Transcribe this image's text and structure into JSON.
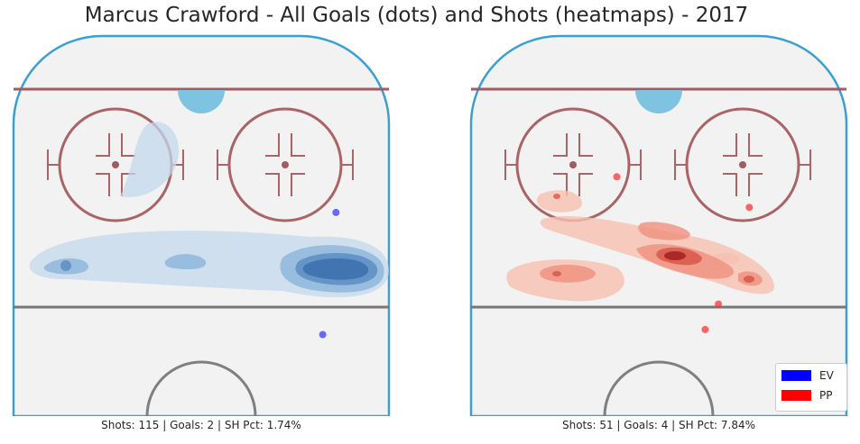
{
  "title": "Marcus Crawford - All Goals (dots) and Shots (heatmaps) - 2017",
  "colors": {
    "ev": "#0000ff",
    "pp": "#ff0000",
    "boards": "#3a9fd1",
    "ice": "#f2f2f2",
    "red_line": "#a05c60",
    "crease": "#7ec3e0"
  },
  "chart_data": [
    {
      "type": "heatmap",
      "panel": "EV",
      "caption": "Shots: 115 | Goals: 2 | SH Pct: 1.74%",
      "shots": 115,
      "goals": 2,
      "sh_pct": "1.74%",
      "heatmap_color": "blue",
      "goal_points": [
        {
          "x": 41,
          "y": 70
        },
        {
          "x": 65,
          "y": 73
        }
      ]
    },
    {
      "type": "heatmap",
      "panel": "PP",
      "caption": "Shots: 51 | Goals: 4 | SH Pct: 7.84%",
      "shots": 51,
      "goals": 4,
      "sh_pct": "7.84%",
      "heatmap_color": "red",
      "goal_points": [
        {
          "x": 72,
          "y": 33
        },
        {
          "x": 66,
          "y": 63
        },
        {
          "x": 47,
          "y": 56
        },
        {
          "x": 42,
          "y": 53
        }
      ]
    }
  ],
  "legend": [
    {
      "label": "EV",
      "color": "#0000ff"
    },
    {
      "label": "PP",
      "color": "#ff0000"
    }
  ]
}
